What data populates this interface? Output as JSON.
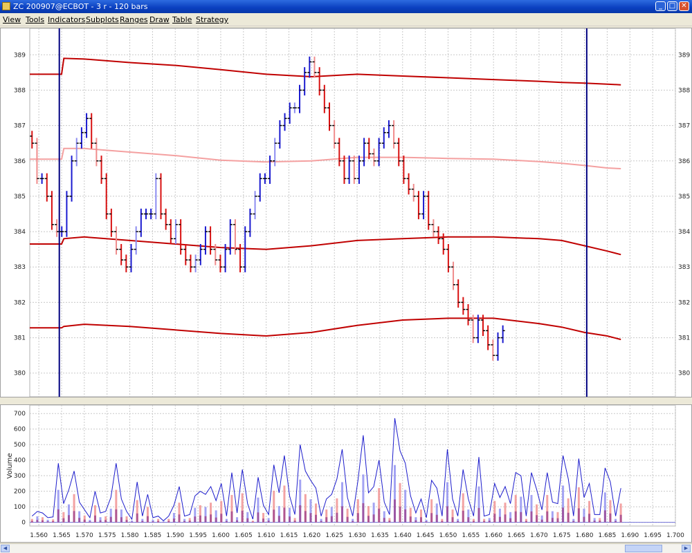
{
  "window": {
    "title": "ZC 200907@ECBOT - 3 r - 120 bars"
  },
  "menu": [
    "View",
    "Tools",
    "Indicators",
    "Subplots",
    "Ranges",
    "Draw",
    "Table",
    "Strategy"
  ],
  "colors": {
    "up_bar": "#1a1ad0",
    "down_bar": "#d81010",
    "up_bar_light": "#8c8cf0",
    "down_bar_light": "#f08c8c",
    "band": "#c00000",
    "mid_band": "#f4a0a0",
    "vline": "#000080",
    "volume_line": "#1c1ccc"
  },
  "chart_data": [
    {
      "type": "line",
      "title": "",
      "description_series": [
        "price bars",
        "envelope bands"
      ],
      "yticks": [
        380,
        381,
        382,
        383,
        384,
        385,
        386,
        387,
        388,
        389
      ],
      "ylim": [
        379.35,
        389.65
      ],
      "xlim": [
        1.558,
        1.7
      ],
      "grid": true,
      "bands": {
        "x": [
          1.558,
          1.565,
          1.5655,
          1.57,
          1.58,
          1.59,
          1.6,
          1.61,
          1.62,
          1.63,
          1.64,
          1.65,
          1.66,
          1.67,
          1.675,
          1.68,
          1.685,
          1.688
        ],
        "upper": [
          388.45,
          388.45,
          388.9,
          388.88,
          388.78,
          388.7,
          388.58,
          388.45,
          388.38,
          388.45,
          388.4,
          388.35,
          388.3,
          388.25,
          388.22,
          388.2,
          388.17,
          388.15
        ],
        "middle": [
          386.05,
          386.05,
          386.35,
          386.35,
          386.25,
          386.15,
          386.02,
          385.97,
          386.0,
          386.1,
          386.1,
          386.07,
          386.05,
          385.98,
          385.93,
          385.87,
          385.8,
          385.78
        ],
        "lower_inner": [
          383.65,
          383.65,
          383.8,
          383.85,
          383.75,
          383.65,
          383.55,
          383.5,
          383.6,
          383.75,
          383.8,
          383.85,
          383.85,
          383.8,
          383.75,
          383.6,
          383.45,
          383.35
        ],
        "lower_outer": [
          381.28,
          381.28,
          381.32,
          381.38,
          381.32,
          381.22,
          381.12,
          381.05,
          381.15,
          381.35,
          381.5,
          381.55,
          381.55,
          381.4,
          381.3,
          381.15,
          381.05,
          380.95
        ]
      },
      "vertical_lines_x": [
        1.5645,
        1.6805
      ],
      "bars": {
        "x_start": 1.5585,
        "x_step": 0.00109,
        "closes": [
          386.5,
          385.5,
          385.5,
          385.0,
          384.2,
          384.0,
          384.0,
          385.0,
          386.0,
          386.5,
          386.8,
          387.2,
          386.5,
          386.0,
          385.5,
          384.5,
          384.0,
          383.5,
          383.2,
          383.0,
          383.5,
          384.0,
          384.5,
          384.5,
          384.5,
          385.5,
          384.5,
          384.2,
          383.8,
          384.2,
          383.5,
          383.2,
          383.0,
          383.2,
          383.5,
          384.0,
          383.5,
          383.2,
          383.0,
          383.5,
          384.2,
          383.5,
          383.0,
          384.0,
          384.5,
          385.0,
          385.5,
          385.5,
          386.0,
          386.5,
          387.0,
          387.2,
          387.5,
          387.5,
          388.0,
          388.5,
          388.8,
          388.5,
          388.0,
          387.5,
          387.0,
          386.5,
          386.0,
          385.5,
          386.0,
          385.5,
          386.0,
          386.5,
          386.2,
          386.0,
          386.5,
          386.8,
          387.0,
          386.5,
          386.0,
          385.5,
          385.2,
          385.0,
          384.5,
          385.0,
          384.2,
          384.0,
          383.8,
          383.5,
          383.0,
          382.5,
          382.0,
          381.8,
          381.5,
          381.0,
          381.5,
          381.2,
          380.8,
          380.5,
          381.0,
          381.2
        ],
        "note": "approximate closes of the 3-range price bars"
      }
    },
    {
      "type": "line",
      "ylabel": "Volume",
      "yticks": [
        0,
        100,
        200,
        300,
        400,
        500,
        600,
        700
      ],
      "ylim": [
        -15,
        710
      ],
      "xlim": [
        1.558,
        1.7
      ],
      "xticks": [
        1.56,
        1.565,
        1.57,
        1.575,
        1.58,
        1.585,
        1.59,
        1.595,
        1.6,
        1.605,
        1.61,
        1.615,
        1.62,
        1.625,
        1.63,
        1.635,
        1.64,
        1.645,
        1.65,
        1.655,
        1.66,
        1.665,
        1.67,
        1.675,
        1.68,
        1.685,
        1.69,
        1.695,
        1.7
      ],
      "xtick_labels": [
        "1.560",
        "1.565",
        "1.570",
        "1.575",
        "1.580",
        "1.585",
        "1.590",
        "1.595",
        "1.600",
        "1.605",
        "1.610",
        "1.615",
        "1.620",
        "1.625",
        "1.630",
        "1.635",
        "1.640",
        "1.645",
        "1.650",
        "1.655",
        "1.660",
        "1.665",
        "1.670",
        "1.675",
        "1.680",
        "1.685",
        "1.690",
        "1.695",
        "1.700"
      ],
      "grid": true,
      "volume": [
        40,
        70,
        60,
        30,
        35,
        380,
        120,
        210,
        330,
        130,
        80,
        30,
        200,
        60,
        70,
        160,
        380,
        150,
        70,
        20,
        260,
        40,
        180,
        30,
        40,
        10,
        40,
        110,
        230,
        40,
        50,
        170,
        200,
        180,
        230,
        140,
        250,
        40,
        320,
        60,
        340,
        120,
        20,
        290,
        110,
        50,
        370,
        190,
        430,
        170,
        50,
        500,
        330,
        270,
        220,
        40,
        150,
        180,
        280,
        470,
        160,
        40,
        270,
        560,
        190,
        230,
        400,
        130,
        50,
        670,
        460,
        380,
        170,
        60,
        150,
        30,
        270,
        220,
        40,
        470,
        150,
        40,
        340,
        150,
        40,
        420,
        40,
        50,
        250,
        160,
        230,
        120,
        320,
        300,
        40,
        320,
        210,
        80,
        320,
        130,
        120,
        430,
        280,
        40,
        410,
        160,
        250,
        50,
        50,
        350,
        260,
        40,
        220
      ]
    }
  ],
  "y_tick_labels_price": [
    "380",
    "381",
    "382",
    "383",
    "384",
    "385",
    "386",
    "387",
    "388",
    "389"
  ],
  "y_tick_labels_volume": [
    "0",
    "100",
    "200",
    "300",
    "400",
    "500",
    "600",
    "700"
  ],
  "volume_axis_label": "Volume"
}
